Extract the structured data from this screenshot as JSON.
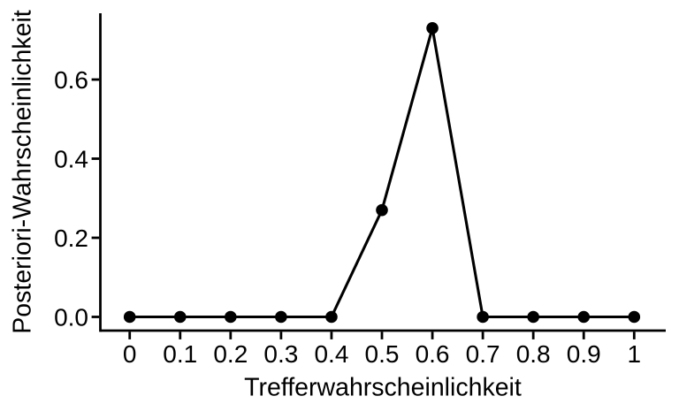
{
  "chart_data": {
    "type": "line",
    "title": "",
    "xlabel": "Trefferwahrscheinlichkeit",
    "ylabel": "Posteriori-Wahrscheinlichkeit",
    "x": [
      0,
      0.1,
      0.2,
      0.3,
      0.4,
      0.5,
      0.6,
      0.7,
      0.8,
      0.9,
      1
    ],
    "y": [
      0,
      0,
      0,
      0,
      0,
      0.27,
      0.73,
      0,
      0,
      0,
      0
    ],
    "x_tick_labels": [
      "0",
      "0.1",
      "0.2",
      "0.3",
      "0.4",
      "0.5",
      "0.6",
      "0.7",
      "0.8",
      "0.9",
      "1"
    ],
    "y_tick_labels": [
      "0.0",
      "0.2",
      "0.4",
      "0.6"
    ],
    "xlim": [
      0,
      1
    ],
    "ylim": [
      -0.035,
      0.767
    ],
    "grid": false,
    "legend": false,
    "line_color": "#000000",
    "marker_color": "#000000",
    "axis_color": "#000000",
    "background_color": "#ffffff",
    "marker": "filled-circle"
  }
}
